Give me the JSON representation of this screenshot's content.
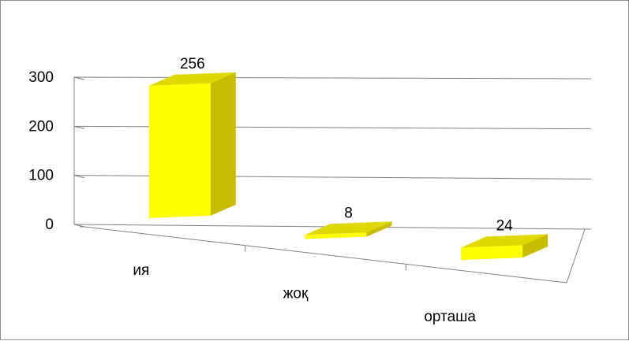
{
  "chart_data": {
    "type": "bar",
    "categories": [
      "ия",
      "жоқ",
      "орташа"
    ],
    "values": [
      256,
      8,
      24
    ],
    "data_labels": [
      "256",
      "8",
      "24"
    ],
    "y_ticks": [
      "0",
      "100",
      "200",
      "300"
    ],
    "ylim": [
      0,
      300
    ],
    "grid": true,
    "legend": "none",
    "style": "3d-column",
    "colors": {
      "bar_front": "#FFFF00",
      "bar_side": "#C8BE00",
      "bar_top": "#E0D800",
      "grid": "#808080"
    }
  }
}
